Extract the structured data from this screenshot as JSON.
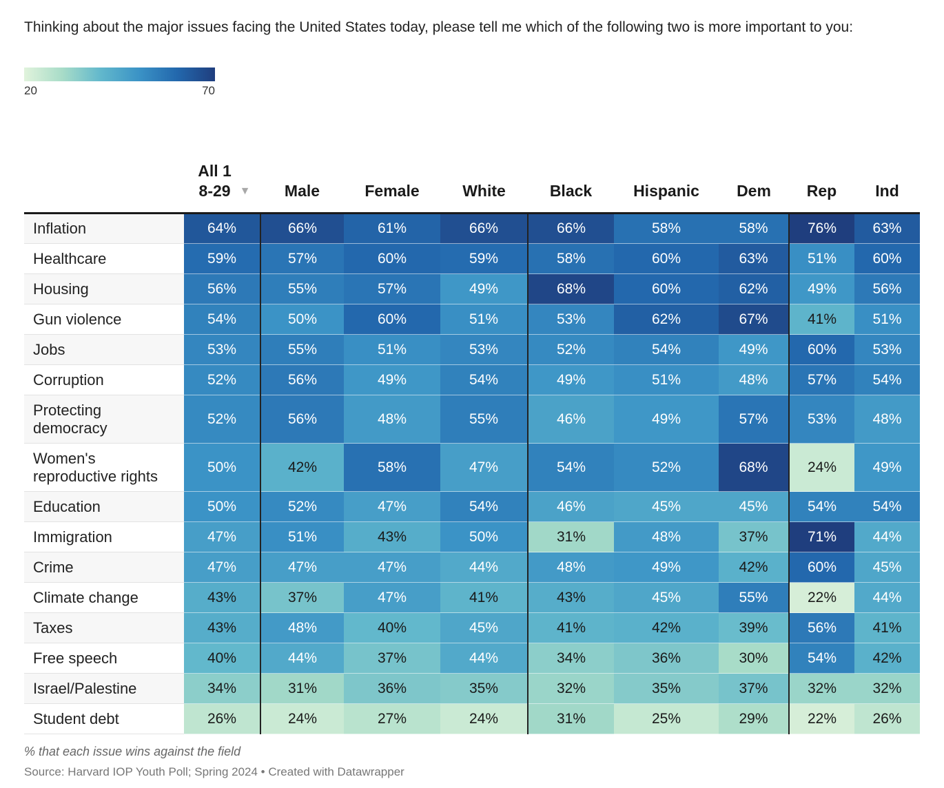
{
  "title": "Thinking about the major issues facing the United States today, please tell me which of the following two is more important to you:",
  "legend": {
    "min": "20",
    "max": "70"
  },
  "chart_data": {
    "type": "heatmap",
    "color_scale": {
      "min": 20,
      "max": 70,
      "low_color": "#e1f3dc",
      "high_color": "#1f3e7e"
    },
    "columns": [
      "All 18-29",
      "Male",
      "Female",
      "White",
      "Black",
      "Hispanic",
      "Dem",
      "Rep",
      "Ind"
    ],
    "sorted_column": "All 18-29",
    "rows": [
      {
        "label": "Inflation",
        "values": [
          64,
          66,
          61,
          66,
          66,
          58,
          58,
          76,
          63
        ]
      },
      {
        "label": "Healthcare",
        "values": [
          59,
          57,
          60,
          59,
          58,
          60,
          63,
          51,
          60
        ]
      },
      {
        "label": "Housing",
        "values": [
          56,
          55,
          57,
          49,
          68,
          60,
          62,
          49,
          56
        ]
      },
      {
        "label": "Gun violence",
        "values": [
          54,
          50,
          60,
          51,
          53,
          62,
          67,
          41,
          51
        ]
      },
      {
        "label": "Jobs",
        "values": [
          53,
          55,
          51,
          53,
          52,
          54,
          49,
          60,
          53
        ]
      },
      {
        "label": "Corruption",
        "values": [
          52,
          56,
          49,
          54,
          49,
          51,
          48,
          57,
          54
        ]
      },
      {
        "label": "Protecting democracy",
        "values": [
          52,
          56,
          48,
          55,
          46,
          49,
          57,
          53,
          48
        ]
      },
      {
        "label": "Women's reproductive rights",
        "values": [
          50,
          42,
          58,
          47,
          54,
          52,
          68,
          24,
          49
        ]
      },
      {
        "label": "Education",
        "values": [
          50,
          52,
          47,
          54,
          46,
          45,
          45,
          54,
          54
        ]
      },
      {
        "label": "Immigration",
        "values": [
          47,
          51,
          43,
          50,
          31,
          48,
          37,
          71,
          44
        ]
      },
      {
        "label": "Crime",
        "values": [
          47,
          47,
          47,
          44,
          48,
          49,
          42,
          60,
          45
        ]
      },
      {
        "label": "Climate change",
        "values": [
          43,
          37,
          47,
          41,
          43,
          45,
          55,
          22,
          44
        ]
      },
      {
        "label": "Taxes",
        "values": [
          43,
          48,
          40,
          45,
          41,
          42,
          39,
          56,
          41
        ]
      },
      {
        "label": "Free speech",
        "values": [
          40,
          44,
          37,
          44,
          34,
          36,
          30,
          54,
          42
        ]
      },
      {
        "label": "Israel/Palestine",
        "values": [
          34,
          31,
          36,
          35,
          32,
          35,
          37,
          32,
          32
        ]
      },
      {
        "label": "Student debt",
        "values": [
          26,
          24,
          27,
          24,
          31,
          25,
          29,
          22,
          26
        ]
      }
    ],
    "value_suffix": "%"
  },
  "note": "% that each issue wins against the field",
  "source": "Source: Harvard IOP Youth Poll; Spring 2024 • Created with Datawrapper"
}
